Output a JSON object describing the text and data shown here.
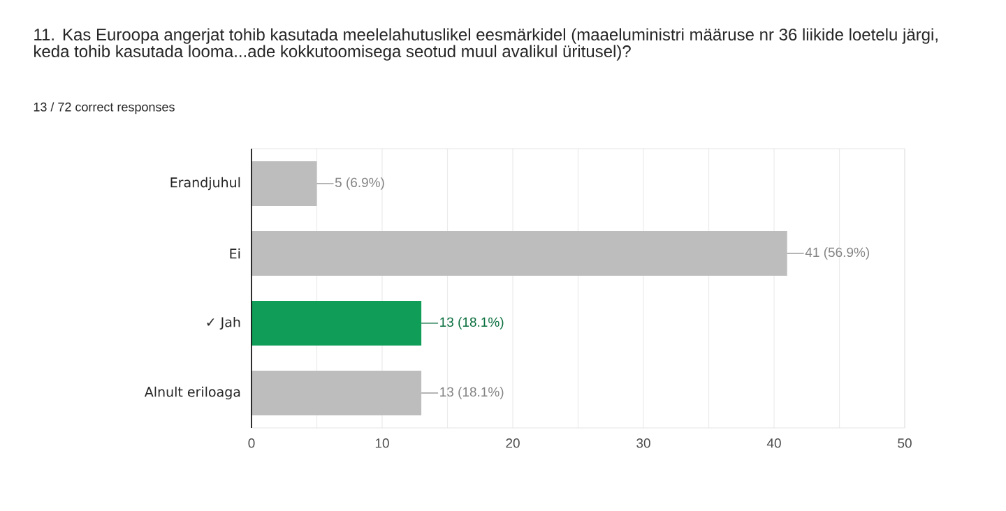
{
  "chart_data": {
    "type": "bar",
    "orientation": "horizontal",
    "title": "11. Kas Euroopa angerjat tohib kasutada meelelahutuslikel eesmärkidel (maaeluministri määruse nr 36 liikide loetelu järgi, keda tohib kasutada looma...ade kokkutoomisega seotud muul avalikul üritusel)?",
    "subtitle": "13 / 72 correct responses",
    "categories": [
      "Erandjuhul",
      "Ei",
      "✓ Jah",
      "Alnult eriloaga"
    ],
    "values": [
      5,
      41,
      13,
      13
    ],
    "colors": [
      "#bdbdbd",
      "#bdbdbd",
      "#0f9d58",
      "#bdbdbd"
    ],
    "value_labels": [
      "5 (6.9%)",
      "41 (56.9%)",
      "13 (18.1%)",
      "13 (18.1%)"
    ],
    "xlim": [
      0,
      50
    ],
    "xticks": [
      0,
      {
        "value": 5,
        "label": null
      },
      10,
      {
        "value": 15,
        "label": null
      },
      20,
      {
        "value": 25,
        "label": null
      },
      30,
      {
        "value": 35,
        "label": null
      },
      40,
      {
        "value": 45,
        "label": null
      },
      50
    ],
    "grid": "x"
  }
}
